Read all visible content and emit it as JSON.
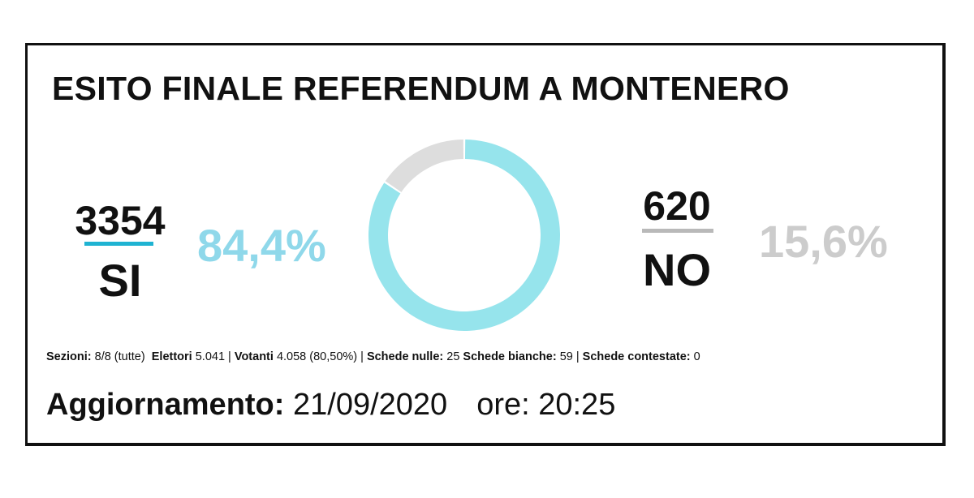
{
  "title": "ESITO FINALE REFERENDUM A MONTENERO",
  "yes": {
    "count": "3354",
    "label": "SI",
    "percent": "84,4%",
    "color": "#96e4ec"
  },
  "no": {
    "count": "620",
    "label": "NO",
    "percent": "15,6%",
    "color": "#dddddd"
  },
  "chart_data": {
    "type": "pie",
    "style": "donut",
    "series": [
      {
        "name": "SI",
        "value": 3354,
        "percent": 84.4,
        "color": "#96e4ec"
      },
      {
        "name": "NO",
        "value": 620,
        "percent": 15.6,
        "color": "#dddddd"
      }
    ],
    "title": "ESITO FINALE REFERENDUM A MONTENERO"
  },
  "stats": {
    "sezioni_label": "Sezioni:",
    "sezioni_value": "8/8 (tutte)",
    "elettori_label": "Elettori",
    "elettori_value": "5.041 |",
    "votanti_label": "Votanti",
    "votanti_value": "4.058 (80,50%) |",
    "nulle_label": "Schede nulle:",
    "nulle_value": "25",
    "bianche_label": "Schede bianche:",
    "bianche_value": "59 |",
    "contestate_label": "Schede contestate:",
    "contestate_value": "0"
  },
  "update": {
    "label": "Aggiornamento:",
    "date": "21/09/2020",
    "time_label": "ore:",
    "time": "20:25"
  }
}
